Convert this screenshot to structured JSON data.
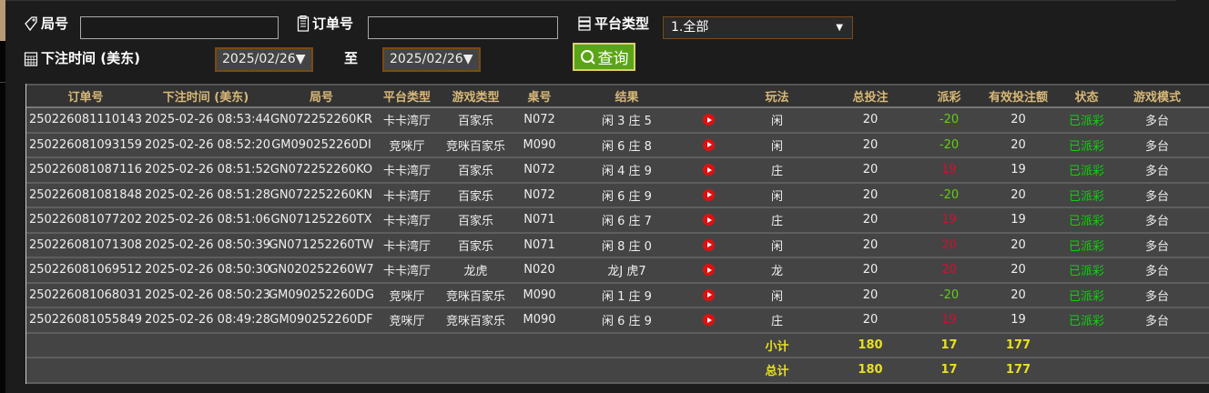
{
  "filters": {
    "round_label": "局号",
    "round_value": "",
    "order_label": "订单号",
    "order_value": "",
    "platform_label": "平台类型",
    "platform_value": "1.全部",
    "time_label": "下注时间 (美东)",
    "date_from": "2025/02/26▼",
    "to_label": "至",
    "date_to": "2025/02/26▼",
    "query_label": "查询"
  },
  "colors": {
    "accent": "#5aa516",
    "payout_negative": "#60d010",
    "payout_positive": "#d01030",
    "status": "#10d010",
    "summary": "#e8e020"
  },
  "table": {
    "headers": [
      "订单号",
      "下注时间 (美东)",
      "局号",
      "平台类型",
      "游戏类型",
      "桌号",
      "结果",
      "",
      "玩法",
      "总投注",
      "派彩",
      "有效投注额",
      "状态",
      "游戏模式"
    ],
    "rows": [
      [
        "250226081110143",
        "2025-02-26 08:53:44",
        "GN072252260KR",
        "卡卡湾厅",
        "百家乐",
        "N072",
        "闲 3 庄 5",
        "闲",
        "20",
        "-20",
        "20",
        "已派彩",
        "多台"
      ],
      [
        "250226081093159",
        "2025-02-26 08:52:20",
        "GM090252260DI",
        "竞咪厅",
        "竞咪百家乐",
        "M090",
        "闲 6 庄 8",
        "闲",
        "20",
        "-20",
        "20",
        "已派彩",
        "多台"
      ],
      [
        "250226081087116",
        "2025-02-26 08:51:52",
        "GN072252260KO",
        "卡卡湾厅",
        "百家乐",
        "N072",
        "闲 4 庄 9",
        "庄",
        "20",
        "19",
        "19",
        "已派彩",
        "多台"
      ],
      [
        "250226081081848",
        "2025-02-26 08:51:28",
        "GN072252260KN",
        "卡卡湾厅",
        "百家乐",
        "N072",
        "闲 6 庄 9",
        "闲",
        "20",
        "-20",
        "20",
        "已派彩",
        "多台"
      ],
      [
        "250226081077202",
        "2025-02-26 08:51:06",
        "GN071252260TX",
        "卡卡湾厅",
        "百家乐",
        "N071",
        "闲 6 庄 7",
        "庄",
        "20",
        "19",
        "19",
        "已派彩",
        "多台"
      ],
      [
        "250226081071308",
        "2025-02-26 08:50:39",
        "GN071252260TW",
        "卡卡湾厅",
        "百家乐",
        "N071",
        "闲 8 庄 0",
        "闲",
        "20",
        "20",
        "20",
        "已派彩",
        "多台"
      ],
      [
        "250226081069512",
        "2025-02-26 08:50:30",
        "GN020252260W7",
        "卡卡湾厅",
        "龙虎",
        "N020",
        "龙J 虎7",
        "龙",
        "20",
        "20",
        "20",
        "已派彩",
        "多台"
      ],
      [
        "250226081068031",
        "2025-02-26 08:50:23",
        "GM090252260DG",
        "竞咪厅",
        "竞咪百家乐",
        "M090",
        "闲 1 庄 9",
        "闲",
        "20",
        "-20",
        "20",
        "已派彩",
        "多台"
      ],
      [
        "250226081055849",
        "2025-02-26 08:49:28",
        "GM090252260DF",
        "竞咪厅",
        "竞咪百家乐",
        "M090",
        "闲 6 庄 9",
        "庄",
        "20",
        "19",
        "19",
        "已派彩",
        "多台"
      ]
    ],
    "subtotal": {
      "label": "小计",
      "total_bet": "180",
      "payout": "17",
      "valid_bet": "177"
    },
    "total": {
      "label": "总计",
      "total_bet": "180",
      "payout": "17",
      "valid_bet": "177"
    }
  }
}
